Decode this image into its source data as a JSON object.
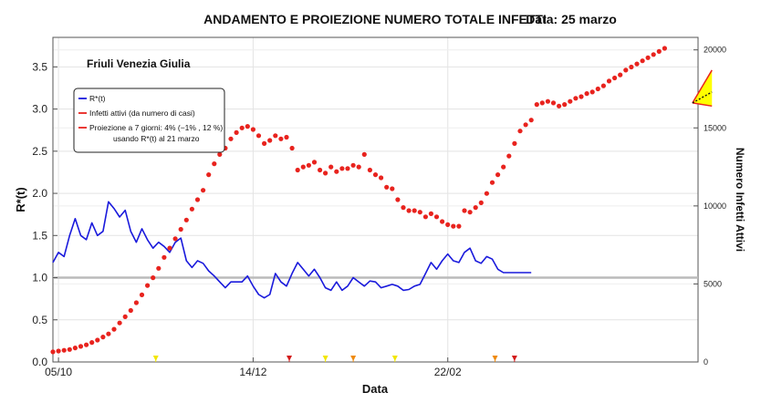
{
  "chart_data": {
    "type": "line",
    "title": "ANDAMENTO E PROIEZIONE NUMERO TOTALE INFETTI",
    "date_label": "Data: 25 marzo",
    "region": "Friuli Venezia Giulia",
    "xlabel": "Data",
    "ylabel_left": "R*(t)",
    "ylabel_right": "Numero Infetti Attivi",
    "x_ticks": [
      "05/10",
      "14/12",
      "22/02"
    ],
    "y_left_ticks": [
      "0.0",
      "0.5",
      "1.0",
      "1.5",
      "2.0",
      "2.5",
      "3.0",
      "3.5"
    ],
    "y_left_lim": [
      0,
      3.85
    ],
    "y_right_ticks": [
      "0",
      "5000",
      "10000",
      "15000",
      "20000"
    ],
    "y_right_lim": [
      0,
      20800
    ],
    "x_day_range": [
      0,
      232
    ],
    "x_tick_days": [
      2,
      72,
      142
    ],
    "grid": true,
    "legend_position": "top-left",
    "legend": [
      {
        "label": "R*(t)",
        "color": "#1a1adc"
      },
      {
        "label": "Infetti attivi (da numero di casi)",
        "color": "#e8231e"
      },
      {
        "label": "Proiezione a 7 giorni: 4% (−1% , 12 %)",
        "label2": "usando R*(t) al 21 marzo",
        "color": "#e8231e"
      }
    ],
    "reference_line": {
      "y": 1.0,
      "color": "#bbbbbb"
    },
    "colors": {
      "rt": "#1a1adc",
      "infected": "#e8231e",
      "projection_fill": "#ffff00",
      "projection_border": "#e8231e",
      "reference": "#bbbbbb"
    },
    "markers": [
      {
        "day": 37,
        "color": "#f2e600"
      },
      {
        "day": 85,
        "color": "#d31a1a"
      },
      {
        "day": 98,
        "color": "#f2e600"
      },
      {
        "day": 108,
        "color": "#ef8a0c"
      },
      {
        "day": 123,
        "color": "#f2e600"
      },
      {
        "day": 159,
        "color": "#ef8a0c"
      },
      {
        "day": 166,
        "color": "#d31a1a"
      }
    ],
    "series": [
      {
        "name": "R*(t)",
        "x": [
          0,
          2,
          4,
          6,
          8,
          10,
          12,
          14,
          16,
          18,
          20,
          22,
          24,
          26,
          28,
          30,
          32,
          34,
          36,
          38,
          40,
          42,
          44,
          46,
          48,
          50,
          52,
          54,
          56,
          58,
          60,
          62,
          64,
          66,
          68,
          70,
          72,
          74,
          76,
          78,
          80,
          82,
          84,
          86,
          88,
          90,
          92,
          94,
          96,
          98,
          100,
          102,
          104,
          106,
          108,
          110,
          112,
          114,
          116,
          118,
          120,
          122,
          124,
          126,
          128,
          130,
          132,
          134,
          136,
          138,
          140,
          142,
          144,
          146,
          148,
          150,
          152,
          154,
          156,
          158,
          160,
          162,
          164,
          166,
          168,
          170,
          172
        ],
        "y": [
          1.18,
          1.3,
          1.25,
          1.5,
          1.7,
          1.5,
          1.45,
          1.65,
          1.5,
          1.55,
          1.9,
          1.82,
          1.72,
          1.8,
          1.55,
          1.42,
          1.58,
          1.45,
          1.35,
          1.42,
          1.37,
          1.3,
          1.42,
          1.47,
          1.2,
          1.12,
          1.2,
          1.17,
          1.08,
          1.02,
          0.95,
          0.88,
          0.95,
          0.95,
          0.95,
          1.02,
          0.9,
          0.8,
          0.76,
          0.8,
          1.05,
          0.95,
          0.9,
          1.05,
          1.18,
          1.1,
          1.02,
          1.1,
          1.0,
          0.88,
          0.85,
          0.95,
          0.85,
          0.9,
          1.0,
          0.95,
          0.9,
          0.96,
          0.95,
          0.88,
          0.9,
          0.92,
          0.9,
          0.85,
          0.86,
          0.9,
          0.92,
          1.05,
          1.18,
          1.1,
          1.2,
          1.28,
          1.2,
          1.18,
          1.3,
          1.35,
          1.2,
          1.17,
          1.25,
          1.22,
          1.1,
          1.06,
          1.06,
          1.06,
          1.06,
          1.06,
          1.06
        ]
      },
      {
        "name": "Infetti attivi (da numero di casi)",
        "x": [
          0,
          2,
          4,
          6,
          8,
          10,
          12,
          14,
          16,
          18,
          20,
          22,
          24,
          26,
          28,
          30,
          32,
          34,
          36,
          38,
          40,
          42,
          44,
          46,
          48,
          50,
          52,
          54,
          56,
          58,
          60,
          62,
          64,
          66,
          68,
          70,
          72,
          74,
          76,
          78,
          80,
          82,
          84,
          86,
          88,
          90,
          92,
          94,
          96,
          98,
          100,
          102,
          104,
          106,
          108,
          110,
          112,
          114,
          116,
          118,
          120,
          122,
          124,
          126,
          128,
          130,
          132,
          134,
          136,
          138,
          140,
          142,
          144,
          146,
          148,
          150,
          152,
          154,
          156,
          158,
          160,
          162,
          164,
          166,
          168,
          170,
          172,
          174,
          176,
          178,
          180,
          182,
          184,
          186,
          188,
          190,
          192,
          194,
          196,
          198,
          200,
          202,
          204,
          206,
          208,
          210,
          212,
          214,
          216,
          218,
          220
        ],
        "y": [
          650,
          700,
          750,
          800,
          900,
          1000,
          1100,
          1250,
          1400,
          1600,
          1800,
          2100,
          2500,
          2900,
          3300,
          3800,
          4300,
          4900,
          5400,
          6000,
          6700,
          7300,
          7900,
          8500,
          9100,
          9800,
          10400,
          11000,
          12000,
          12700,
          13300,
          13700,
          14300,
          14700,
          15000,
          15100,
          14900,
          14500,
          14000,
          14200,
          14500,
          14300,
          14400,
          13700,
          12300,
          12500,
          12600,
          12800,
          12300,
          12100,
          12500,
          12200,
          12400,
          12400,
          12600,
          12500,
          13300,
          12300,
          12000,
          11800,
          11200,
          11100,
          10400,
          9900,
          9700,
          9700,
          9600,
          9300,
          9500,
          9300,
          9000,
          8800,
          8700,
          8700,
          9700,
          9600,
          9900,
          10200,
          10800,
          11500,
          12000,
          12500,
          13200,
          14000,
          14800,
          15200,
          15500,
          16500,
          16600,
          16700,
          16600,
          16400,
          16500,
          16700,
          16900,
          17000,
          17200,
          17300,
          17500,
          17700,
          18000,
          18200,
          18400,
          18700,
          18900,
          19100,
          19300,
          19500,
          19700,
          19900,
          20100
        ]
      },
      {
        "name": "Proiezione a 7 giorni",
        "projection": {
          "start_day": 230,
          "start_value": 16600,
          "end_day": 237,
          "center_value": 17300,
          "upper_value": 18700,
          "lower_value": 16400
        }
      }
    ]
  }
}
